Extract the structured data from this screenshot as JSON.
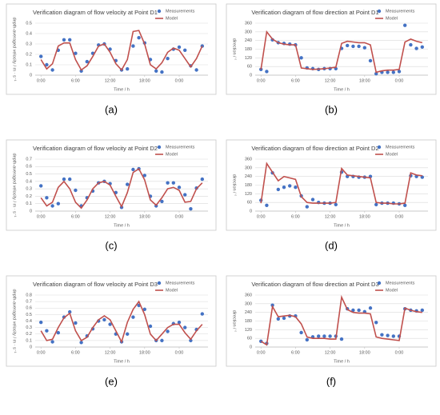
{
  "chart_data": [
    {
      "type": "line",
      "panel": "(a)",
      "title": "Verification diagram of flow velocity at Point D1",
      "xlabel": "Time  / h",
      "ylabel": "depth-averaged velocity / m · s⁻¹",
      "x": [
        0,
        1,
        2,
        3,
        4,
        5,
        6,
        7,
        8,
        9,
        10,
        11,
        12,
        13,
        14,
        15,
        16,
        17,
        18,
        19,
        20,
        21,
        22,
        23,
        24,
        25,
        26,
        27,
        28
      ],
      "xlim": [
        -1,
        29
      ],
      "xticks": [
        {
          "value": 0,
          "label": "0:00"
        },
        {
          "value": 6,
          "label": "6:00"
        },
        {
          "value": 12,
          "label": "12:00"
        },
        {
          "value": 18,
          "label": "18:00"
        },
        {
          "value": 24,
          "label": "0:00"
        }
      ],
      "ylim": [
        0,
        0.5
      ],
      "yticks": [
        0,
        0.1,
        0.2,
        0.3,
        0.4,
        0.5
      ],
      "grid": true,
      "legend": "upper right",
      "series": [
        {
          "name": "Measurements",
          "mark": "marker",
          "color": "#4472c4",
          "values": [
            0.18,
            0.1,
            0.05,
            0.24,
            0.34,
            0.34,
            0.21,
            0.04,
            0.13,
            0.21,
            0.29,
            0.3,
            0.25,
            0.14,
            0.05,
            0.06,
            0.28,
            0.36,
            0.31,
            0.15,
            0.04,
            0.03,
            0.16,
            0.25,
            0.27,
            0.24,
            0.09,
            0.05,
            0.28
          ]
        },
        {
          "name": "Model",
          "mark": "line",
          "color": "#c0504d",
          "values": [
            0.15,
            0.06,
            0.11,
            0.28,
            0.31,
            0.31,
            0.15,
            0.05,
            0.09,
            0.18,
            0.28,
            0.3,
            0.22,
            0.11,
            0.05,
            0.15,
            0.42,
            0.43,
            0.3,
            0.1,
            0.06,
            0.12,
            0.22,
            0.26,
            0.24,
            0.16,
            0.08,
            0.16,
            0.28
          ]
        }
      ]
    },
    {
      "type": "line",
      "panel": "(b)",
      "title": "Verification diagram of flow direction at Point D1",
      "xlabel": "Time  / h",
      "ylabel": "direction / °",
      "x": [
        0,
        1,
        2,
        3,
        4,
        5,
        6,
        7,
        8,
        9,
        10,
        11,
        12,
        13,
        14,
        15,
        16,
        17,
        18,
        19,
        20,
        21,
        22,
        23,
        24,
        25,
        26,
        27,
        28
      ],
      "xlim": [
        -1,
        29
      ],
      "xticks": [
        {
          "value": 0,
          "label": "0:00"
        },
        {
          "value": 6,
          "label": "6:00"
        },
        {
          "value": 12,
          "label": "12:00"
        },
        {
          "value": 18,
          "label": "18:00"
        },
        {
          "value": 24,
          "label": "0:00"
        }
      ],
      "ylim": [
        0,
        360
      ],
      "yticks": [
        0,
        60,
        120,
        180,
        240,
        300,
        360
      ],
      "grid": true,
      "legend": "upper right",
      "series": [
        {
          "name": "Measurements",
          "mark": "marker",
          "color": "#4472c4",
          "values": [
            40,
            25,
            245,
            225,
            220,
            215,
            210,
            120,
            50,
            45,
            40,
            45,
            45,
            45,
            185,
            205,
            200,
            200,
            190,
            100,
            10,
            20,
            20,
            20,
            25,
            345,
            210,
            185,
            195
          ]
        },
        {
          "name": "Model",
          "mark": "line",
          "color": "#c0504d",
          "values": [
            40,
            300,
            250,
            225,
            215,
            210,
            210,
            50,
            45,
            40,
            42,
            45,
            50,
            55,
            220,
            235,
            230,
            225,
            225,
            210,
            20,
            30,
            35,
            35,
            40,
            230,
            250,
            235,
            225
          ]
        }
      ]
    },
    {
      "type": "line",
      "panel": "(c)",
      "title": "Verification diagram of flow velocity at Point D2",
      "xlabel": "Time  / h",
      "ylabel": "depth-averaged velocity / m · s⁻¹",
      "x": [
        0,
        1,
        2,
        3,
        4,
        5,
        6,
        7,
        8,
        9,
        10,
        11,
        12,
        13,
        14,
        15,
        16,
        17,
        18,
        19,
        20,
        21,
        22,
        23,
        24,
        25,
        26,
        27,
        28
      ],
      "xlim": [
        -1,
        29
      ],
      "xticks": [
        {
          "value": 0,
          "label": "0:00"
        },
        {
          "value": 6,
          "label": "6:00"
        },
        {
          "value": 12,
          "label": "12:00"
        },
        {
          "value": 18,
          "label": "18:00"
        },
        {
          "value": 24,
          "label": "0:00"
        }
      ],
      "ylim": [
        0,
        0.7
      ],
      "yticks": [
        0,
        0.1,
        0.2,
        0.3,
        0.4,
        0.5,
        0.6,
        0.7
      ],
      "grid": true,
      "legend": "upper right",
      "series": [
        {
          "name": "Measurements",
          "mark": "marker",
          "color": "#4472c4",
          "values": [
            0.34,
            0.18,
            0.07,
            0.1,
            0.43,
            0.43,
            0.28,
            0.07,
            0.18,
            0.27,
            0.38,
            0.4,
            0.37,
            0.25,
            0.05,
            0.36,
            0.56,
            0.57,
            0.48,
            0.2,
            0.07,
            0.13,
            0.38,
            0.38,
            0.32,
            0.22,
            0.03,
            0.31,
            0.43
          ]
        },
        {
          "name": "Model",
          "mark": "line",
          "color": "#c0504d",
          "values": [
            0.18,
            0.07,
            0.12,
            0.32,
            0.4,
            0.3,
            0.12,
            0.04,
            0.15,
            0.3,
            0.38,
            0.4,
            0.35,
            0.2,
            0.06,
            0.25,
            0.52,
            0.57,
            0.42,
            0.15,
            0.08,
            0.18,
            0.3,
            0.32,
            0.28,
            0.12,
            0.13,
            0.3,
            0.38
          ]
        }
      ]
    },
    {
      "type": "line",
      "panel": "(d)",
      "title": "Verification diagram of flow direction at Point D2",
      "xlabel": "Time  / h",
      "ylabel": "direction / °",
      "x": [
        0,
        1,
        2,
        3,
        4,
        5,
        6,
        7,
        8,
        9,
        10,
        11,
        12,
        13,
        14,
        15,
        16,
        17,
        18,
        19,
        20,
        21,
        22,
        23,
        24,
        25,
        26,
        27,
        28
      ],
      "xlim": [
        -1,
        29
      ],
      "xticks": [
        {
          "value": 0,
          "label": "0:00"
        },
        {
          "value": 6,
          "label": "6:00"
        },
        {
          "value": 12,
          "label": "12:00"
        },
        {
          "value": 18,
          "label": "18:00"
        },
        {
          "value": 24,
          "label": "0:00"
        }
      ],
      "ylim": [
        0,
        360
      ],
      "yticks": [
        0,
        60,
        120,
        180,
        240,
        300,
        360
      ],
      "grid": true,
      "legend": "upper right",
      "series": [
        {
          "name": "Measurements",
          "mark": "marker",
          "color": "#4472c4",
          "values": [
            75,
            40,
            265,
            150,
            165,
            175,
            165,
            105,
            30,
            80,
            60,
            55,
            55,
            45,
            270,
            240,
            240,
            235,
            235,
            240,
            45,
            55,
            55,
            55,
            50,
            40,
            245,
            240,
            235
          ]
        },
        {
          "name": "Model",
          "mark": "line",
          "color": "#c0504d",
          "values": [
            55,
            330,
            270,
            210,
            240,
            230,
            220,
            100,
            60,
            55,
            55,
            55,
            55,
            60,
            295,
            250,
            245,
            240,
            235,
            230,
            60,
            55,
            55,
            50,
            50,
            55,
            265,
            250,
            245
          ]
        }
      ]
    },
    {
      "type": "line",
      "panel": "(e)",
      "title": "Verification diagram of flow velocity at Point D3",
      "xlabel": "Time  / h",
      "ylabel": "depth-averaged velocity / m · s⁻¹",
      "x": [
        0,
        1,
        2,
        3,
        4,
        5,
        6,
        7,
        8,
        9,
        10,
        11,
        12,
        13,
        14,
        15,
        16,
        17,
        18,
        19,
        20,
        21,
        22,
        23,
        24,
        25,
        26,
        27,
        28
      ],
      "xlim": [
        -1,
        29
      ],
      "xticks": [
        {
          "value": 0,
          "label": "0:00"
        },
        {
          "value": 6,
          "label": "6:00"
        },
        {
          "value": 12,
          "label": "12:00"
        },
        {
          "value": 18,
          "label": "18:00"
        },
        {
          "value": 24,
          "label": "0:00"
        }
      ],
      "ylim": [
        0,
        0.8
      ],
      "yticks": [
        0,
        0.1,
        0.2,
        0.3,
        0.4,
        0.5,
        0.6,
        0.7,
        0.8
      ],
      "grid": true,
      "legend": "upper right",
      "series": [
        {
          "name": "Measurements",
          "mark": "marker",
          "color": "#4472c4",
          "values": [
            0.38,
            0.25,
            0.08,
            0.22,
            0.46,
            0.54,
            0.37,
            0.07,
            0.17,
            0.28,
            0.4,
            0.42,
            0.35,
            0.2,
            0.08,
            0.2,
            0.46,
            0.64,
            0.58,
            0.32,
            0.1,
            0.1,
            0.24,
            0.36,
            0.38,
            0.3,
            0.1,
            0.27,
            0.51
          ]
        },
        {
          "name": "Model",
          "mark": "line",
          "color": "#c0504d",
          "values": [
            0.25,
            0.1,
            0.12,
            0.3,
            0.45,
            0.52,
            0.25,
            0.1,
            0.15,
            0.3,
            0.42,
            0.48,
            0.42,
            0.25,
            0.08,
            0.38,
            0.58,
            0.7,
            0.5,
            0.2,
            0.1,
            0.2,
            0.3,
            0.35,
            0.35,
            0.22,
            0.12,
            0.25,
            0.35
          ]
        }
      ]
    },
    {
      "type": "line",
      "panel": "(f)",
      "title": "Verification diagram of flow direction at Point D3",
      "xlabel": "Time  / h",
      "ylabel": "direction / °",
      "x": [
        0,
        1,
        2,
        3,
        4,
        5,
        6,
        7,
        8,
        9,
        10,
        11,
        12,
        13,
        14,
        15,
        16,
        17,
        18,
        19,
        20,
        21,
        22,
        23,
        24,
        25,
        26,
        27,
        28
      ],
      "xlim": [
        -1,
        29
      ],
      "xticks": [
        {
          "value": 0,
          "label": "0:00"
        },
        {
          "value": 6,
          "label": "6:00"
        },
        {
          "value": 12,
          "label": "12:00"
        },
        {
          "value": 18,
          "label": "18:00"
        },
        {
          "value": 24,
          "label": "0:00"
        }
      ],
      "ylim": [
        0,
        360
      ],
      "yticks": [
        0,
        60,
        120,
        180,
        240,
        300,
        360
      ],
      "grid": true,
      "legend": "upper right",
      "series": [
        {
          "name": "Measurements",
          "mark": "marker",
          "color": "#4472c4",
          "values": [
            40,
            25,
            290,
            195,
            200,
            215,
            215,
            100,
            50,
            70,
            75,
            75,
            75,
            75,
            55,
            265,
            255,
            255,
            245,
            270,
            170,
            85,
            80,
            75,
            75,
            265,
            255,
            250,
            255
          ]
        },
        {
          "name": "Model",
          "mark": "line",
          "color": "#c0504d",
          "values": [
            40,
            15,
            280,
            210,
            215,
            220,
            210,
            160,
            70,
            60,
            60,
            60,
            55,
            55,
            345,
            260,
            240,
            235,
            235,
            230,
            70,
            60,
            55,
            50,
            45,
            270,
            255,
            245,
            240
          ]
        }
      ]
    }
  ]
}
